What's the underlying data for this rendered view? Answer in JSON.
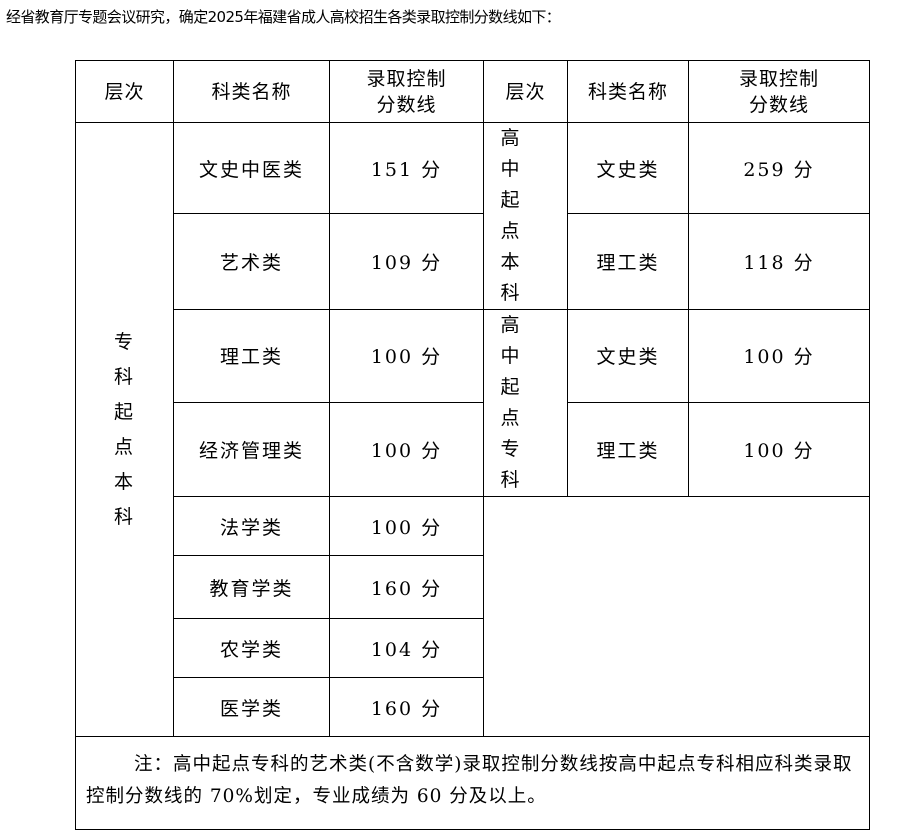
{
  "intro": "经省教育厅专题会议研究，确定2025年福建省成人高校招生各类录取控制分数线如下：",
  "headers": {
    "level": "层次",
    "subject": "科类名称",
    "score": "录取控制分数线",
    "score_l1": "录取控制",
    "score_l2": "分数线"
  },
  "left": {
    "level": "专科起点本科",
    "rows": [
      {
        "subject": "文史中医类",
        "score": "151 分"
      },
      {
        "subject": "艺术类",
        "score": "109 分"
      },
      {
        "subject": "理工类",
        "score": "100 分"
      },
      {
        "subject": "经济管理类",
        "score": "100 分"
      },
      {
        "subject": "法学类",
        "score": "100 分"
      },
      {
        "subject": "教育学类",
        "score": "160 分"
      },
      {
        "subject": "农学类",
        "score": "104 分"
      },
      {
        "subject": "医学类",
        "score": "160 分"
      }
    ]
  },
  "right": [
    {
      "level": "高中起点本科",
      "rows": [
        {
          "subject": "文史类",
          "score": "259 分"
        },
        {
          "subject": "理工类",
          "score": "118 分"
        }
      ]
    },
    {
      "level": "高中起点专科",
      "rows": [
        {
          "subject": "文史类",
          "score": "100 分"
        },
        {
          "subject": "理工类",
          "score": "100 分"
        }
      ]
    }
  ],
  "note": "注：高中起点专科的艺术类(不含数学)录取控制分数线按高中起点专科相应科类录取控制分数线的 70%划定，专业成绩为 60 分及以上。"
}
